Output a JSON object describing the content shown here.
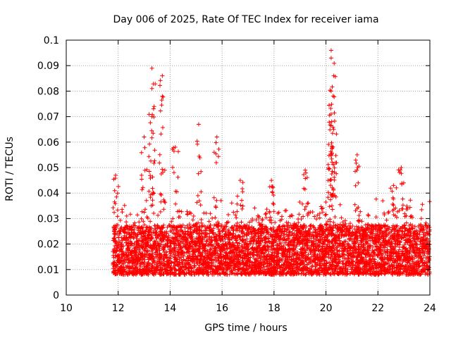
{
  "chart_data": {
    "type": "scatter",
    "title": "Day 006 of 2025, Rate Of TEC Index for receiver iama",
    "xlabel": "GPS time / hours",
    "ylabel": "ROTI / TECUs",
    "xlim": [
      10,
      24
    ],
    "ylim": [
      0,
      0.1
    ],
    "x_ticks": [
      10,
      12,
      14,
      16,
      18,
      20,
      22,
      24
    ],
    "x_tick_labels": [
      "10",
      "12",
      "14",
      "16",
      "18",
      "20",
      "22",
      "24"
    ],
    "y_ticks": [
      0,
      0.01,
      0.02,
      0.03,
      0.04,
      0.05,
      0.06,
      0.07,
      0.08,
      0.09,
      0.1
    ],
    "y_tick_labels": [
      "0",
      "0.01",
      "0.02",
      "0.03",
      "0.04",
      "0.05",
      "0.06",
      "0.07",
      "0.08",
      "0.09",
      "0.1"
    ],
    "grid": true,
    "marker": "+",
    "color": "#ff0000",
    "series": [
      {
        "name": "ROTI",
        "x_range": [
          11.8,
          24.0
        ],
        "typical_y_range": [
          0.004,
          0.03
        ],
        "peaks": [
          {
            "x": 11.9,
            "y": 0.047
          },
          {
            "x": 13.0,
            "y": 0.062
          },
          {
            "x": 13.3,
            "y": 0.089
          },
          {
            "x": 13.3,
            "y": 0.081
          },
          {
            "x": 13.3,
            "y": 0.07
          },
          {
            "x": 13.7,
            "y": 0.086
          },
          {
            "x": 13.7,
            "y": 0.078
          },
          {
            "x": 14.2,
            "y": 0.058
          },
          {
            "x": 15.1,
            "y": 0.067
          },
          {
            "x": 15.8,
            "y": 0.062
          },
          {
            "x": 16.7,
            "y": 0.045
          },
          {
            "x": 17.9,
            "y": 0.045
          },
          {
            "x": 19.2,
            "y": 0.049
          },
          {
            "x": 20.2,
            "y": 0.096
          },
          {
            "x": 20.2,
            "y": 0.093
          },
          {
            "x": 20.3,
            "y": 0.086
          },
          {
            "x": 20.2,
            "y": 0.08
          },
          {
            "x": 20.2,
            "y": 0.071
          },
          {
            "x": 20.3,
            "y": 0.065
          },
          {
            "x": 20.2,
            "y": 0.055
          },
          {
            "x": 21.2,
            "y": 0.055
          },
          {
            "x": 22.9,
            "y": 0.05
          },
          {
            "x": 22.6,
            "y": 0.043
          }
        ]
      }
    ]
  }
}
